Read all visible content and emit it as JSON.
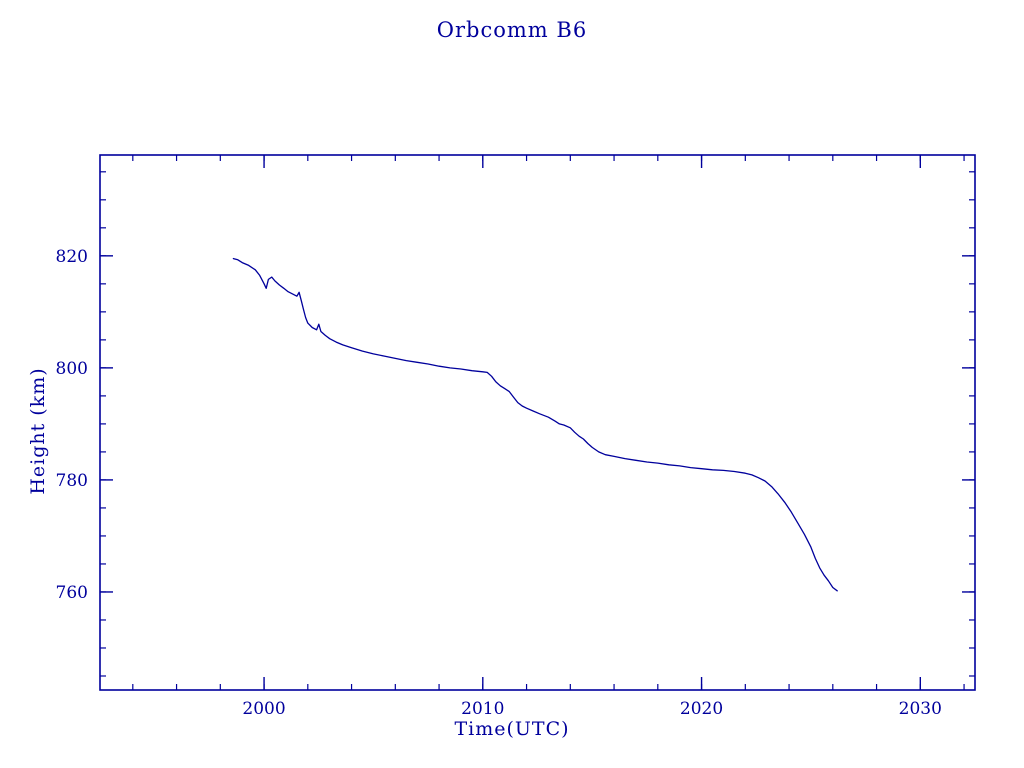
{
  "colors": {
    "ink": "#00009C",
    "line": "#00009C",
    "background": "#ffffff"
  },
  "chart_data": {
    "type": "line",
    "title": "Orbcomm B6",
    "xlabel": "Time(UTC)",
    "ylabel": "Height (km)",
    "xlim": [
      1992.5,
      2032.5
    ],
    "ylim": [
      742.5,
      838.0
    ],
    "xticks": [
      2000,
      2010,
      2020,
      2030
    ],
    "xtick_labels": [
      "2000",
      "2010",
      "2020",
      "2030"
    ],
    "xminor_step": 2,
    "yticks": [
      760,
      780,
      800,
      820
    ],
    "ytick_labels": [
      "760",
      "780",
      "800",
      "820"
    ],
    "yminor_step": 5,
    "grid": false,
    "legend": "none",
    "series": [
      {
        "name": "Orbcomm B6 orbital height",
        "points": [
          [
            1998.6,
            819.5
          ],
          [
            1998.8,
            819.3
          ],
          [
            1999.0,
            818.8
          ],
          [
            1999.3,
            818.3
          ],
          [
            1999.6,
            817.5
          ],
          [
            1999.8,
            816.5
          ],
          [
            2000.0,
            815.0
          ],
          [
            2000.1,
            814.2
          ],
          [
            2000.2,
            815.8
          ],
          [
            2000.35,
            816.2
          ],
          [
            2000.5,
            815.5
          ],
          [
            2000.7,
            814.8
          ],
          [
            2000.9,
            814.2
          ],
          [
            2001.1,
            813.6
          ],
          [
            2001.3,
            813.2
          ],
          [
            2001.5,
            812.8
          ],
          [
            2001.6,
            813.5
          ],
          [
            2001.7,
            812.0
          ],
          [
            2001.8,
            810.5
          ],
          [
            2001.9,
            809.0
          ],
          [
            2002.0,
            808.0
          ],
          [
            2002.2,
            807.2
          ],
          [
            2002.4,
            806.8
          ],
          [
            2002.5,
            807.8
          ],
          [
            2002.6,
            806.5
          ],
          [
            2002.8,
            805.8
          ],
          [
            2003.0,
            805.2
          ],
          [
            2003.3,
            804.6
          ],
          [
            2003.6,
            804.1
          ],
          [
            2004.0,
            803.6
          ],
          [
            2004.5,
            803.0
          ],
          [
            2005.0,
            802.5
          ],
          [
            2005.5,
            802.1
          ],
          [
            2006.0,
            801.7
          ],
          [
            2006.5,
            801.3
          ],
          [
            2007.0,
            801.0
          ],
          [
            2007.5,
            800.7
          ],
          [
            2008.0,
            800.3
          ],
          [
            2008.5,
            800.0
          ],
          [
            2009.0,
            799.8
          ],
          [
            2009.5,
            799.5
          ],
          [
            2010.0,
            799.3
          ],
          [
            2010.2,
            799.2
          ],
          [
            2010.4,
            798.5
          ],
          [
            2010.6,
            797.5
          ],
          [
            2010.8,
            796.8
          ],
          [
            2011.0,
            796.3
          ],
          [
            2011.2,
            795.8
          ],
          [
            2011.4,
            794.8
          ],
          [
            2011.6,
            793.8
          ],
          [
            2011.8,
            793.2
          ],
          [
            2012.0,
            792.8
          ],
          [
            2012.3,
            792.3
          ],
          [
            2012.6,
            791.8
          ],
          [
            2013.0,
            791.2
          ],
          [
            2013.3,
            790.5
          ],
          [
            2013.5,
            790.0
          ],
          [
            2013.7,
            789.8
          ],
          [
            2014.0,
            789.3
          ],
          [
            2014.2,
            788.5
          ],
          [
            2014.4,
            787.8
          ],
          [
            2014.6,
            787.3
          ],
          [
            2014.8,
            786.5
          ],
          [
            2015.0,
            785.8
          ],
          [
            2015.3,
            785.0
          ],
          [
            2015.6,
            784.5
          ],
          [
            2016.0,
            784.2
          ],
          [
            2016.5,
            783.8
          ],
          [
            2017.0,
            783.5
          ],
          [
            2017.5,
            783.2
          ],
          [
            2018.0,
            783.0
          ],
          [
            2018.5,
            782.7
          ],
          [
            2019.0,
            782.5
          ],
          [
            2019.5,
            782.2
          ],
          [
            2020.0,
            782.0
          ],
          [
            2020.5,
            781.8
          ],
          [
            2021.0,
            781.7
          ],
          [
            2021.5,
            781.5
          ],
          [
            2022.0,
            781.2
          ],
          [
            2022.3,
            780.9
          ],
          [
            2022.6,
            780.4
          ],
          [
            2022.9,
            779.8
          ],
          [
            2023.2,
            778.8
          ],
          [
            2023.5,
            777.5
          ],
          [
            2023.8,
            776.0
          ],
          [
            2024.1,
            774.3
          ],
          [
            2024.4,
            772.3
          ],
          [
            2024.7,
            770.3
          ],
          [
            2025.0,
            768.0
          ],
          [
            2025.2,
            766.0
          ],
          [
            2025.4,
            764.3
          ],
          [
            2025.6,
            763.0
          ],
          [
            2025.8,
            762.0
          ],
          [
            2026.0,
            760.8
          ],
          [
            2026.2,
            760.2
          ]
        ]
      }
    ]
  }
}
